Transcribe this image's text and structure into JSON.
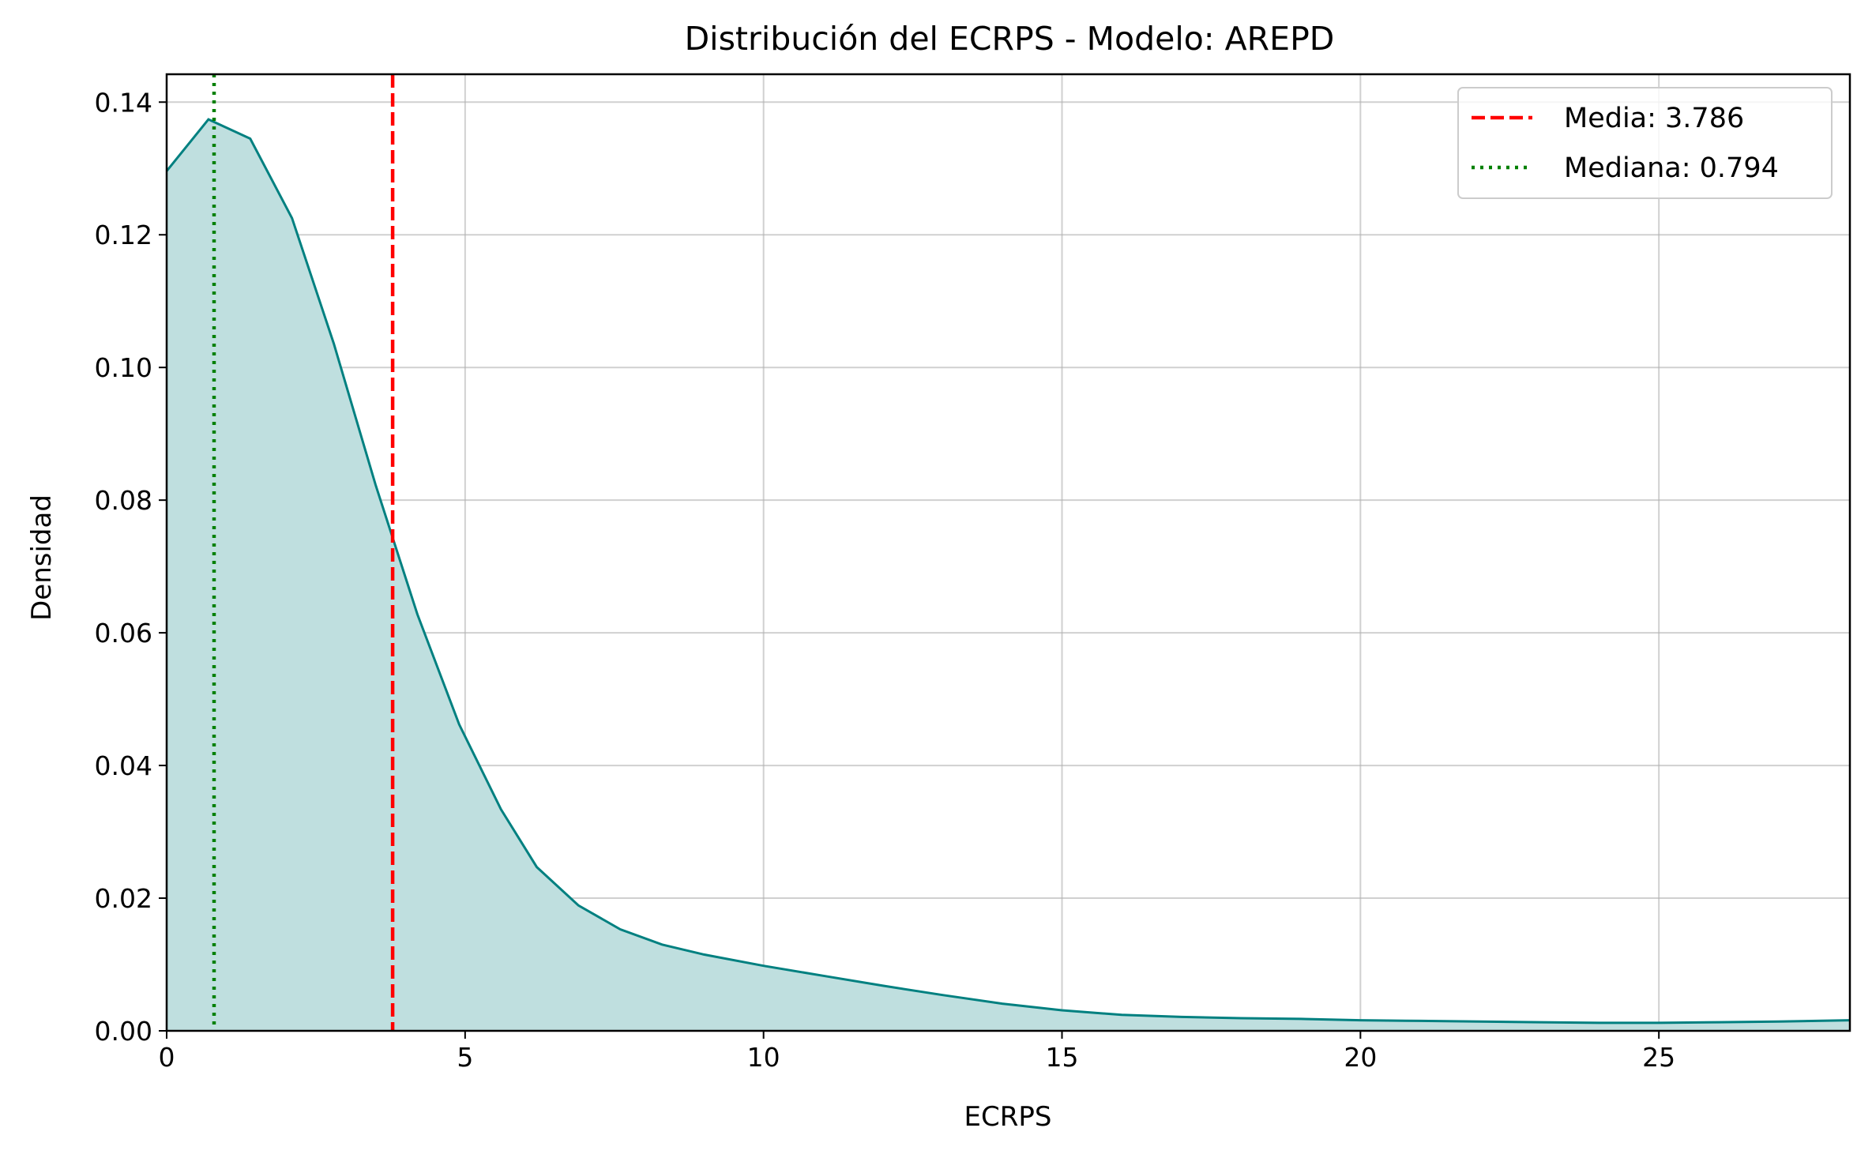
{
  "chart_data": {
    "type": "area",
    "title": "Distribución del ECRPS - Modelo: AREPD",
    "xlabel": "ECRPS",
    "ylabel": "Densidad",
    "xlim": [
      0,
      28.2
    ],
    "ylim": [
      0,
      0.1442
    ],
    "xticks": [
      0,
      5,
      10,
      15,
      20,
      25
    ],
    "yticks": [
      0.0,
      0.02,
      0.04,
      0.06,
      0.08,
      0.1,
      0.12,
      0.14
    ],
    "ytick_labels": [
      "0.00",
      "0.02",
      "0.04",
      "0.06",
      "0.08",
      "0.10",
      "0.12",
      "0.14"
    ],
    "grid": true,
    "legend_position": "top-right",
    "series": [
      {
        "x": [
          0,
          0.7,
          1.4,
          2.1,
          2.8,
          3.5,
          4.2,
          4.9,
          5.6,
          6.2,
          6.9,
          7.6,
          8.3,
          9.0,
          10.0,
          11.0,
          12.0,
          13.0,
          14.0,
          15.0,
          16.0,
          17.0,
          18.0,
          19.0,
          20.0,
          21.0,
          22.0,
          23.0,
          24.0,
          25.0,
          26.0,
          27.0,
          28.2
        ],
        "y": [
          0.1296,
          0.1374,
          0.1345,
          0.1225,
          0.1036,
          0.0823,
          0.0628,
          0.0462,
          0.0334,
          0.0247,
          0.0189,
          0.0153,
          0.013,
          0.0115,
          0.0098,
          0.0083,
          0.0068,
          0.0054,
          0.0041,
          0.0031,
          0.0024,
          0.0021,
          0.0019,
          0.0018,
          0.0016,
          0.0015,
          0.0014,
          0.0013,
          0.0012,
          0.0012,
          0.0013,
          0.0014,
          0.0016
        ],
        "color": "#008080",
        "fill_color": "#bfdfdf"
      }
    ],
    "reference_lines": [
      {
        "label": "Media: 3.786",
        "x": 3.786,
        "color": "#ff0000",
        "style": "dashed"
      },
      {
        "label": "Mediana: 0.794",
        "x": 0.794,
        "color": "#008000",
        "style": "dotted"
      }
    ]
  }
}
